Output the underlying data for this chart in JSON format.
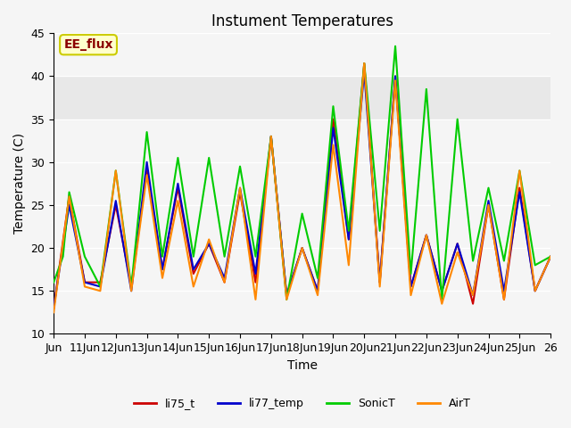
{
  "title": "Instument Temperatures",
  "xlabel": "Time",
  "ylabel": "Temperature (C)",
  "ylim": [
    10,
    45
  ],
  "shade_ymin": 35,
  "shade_ymax": 40,
  "shade_color": "#e8e8e8",
  "bg_color": "#f5f5f5",
  "grid_color": "#ffffff",
  "annotation_text": "EE_flux",
  "annotation_color": "#8b0000",
  "annotation_bg": "#ffffcc",
  "annotation_border": "#cccc00",
  "x_tick_positions": [
    0,
    1,
    2,
    3,
    4,
    5,
    6,
    7,
    8,
    9,
    10,
    11,
    12,
    13,
    14,
    15,
    16
  ],
  "x_tick_labels": [
    "Jun",
    "11Jun",
    "12Jun",
    "13Jun",
    "14Jun",
    "15Jun",
    "16Jun",
    "17Jun",
    "18Jun",
    "19Jun",
    "20Jun",
    "21Jun",
    "22Jun",
    "23Jun",
    "24Jun",
    "25Jun",
    "26"
  ],
  "legend_labels": [
    "li75_t",
    "li77_temp",
    "SonicT",
    "AirT"
  ],
  "legend_colors": [
    "#cc0000",
    "#0000cc",
    "#00cc00",
    "#ff8800"
  ],
  "line_width": 1.5,
  "series": {
    "li75_t": {
      "color": "#cc0000",
      "x": [
        0.0,
        0.5,
        1.0,
        1.5,
        2.0,
        2.5,
        3.0,
        3.5,
        4.0,
        4.5,
        5.0,
        5.5,
        6.0,
        6.5,
        7.0,
        7.5,
        8.0,
        8.5,
        9.0,
        9.5,
        10.0,
        10.5,
        11.0,
        11.5,
        12.0,
        12.5,
        13.0,
        13.5,
        14.0,
        14.5,
        15.0,
        15.5,
        16.0
      ],
      "y": [
        13.0,
        26.0,
        16.0,
        16.0,
        25.0,
        15.5,
        29.0,
        17.5,
        27.0,
        17.0,
        20.5,
        16.0,
        26.5,
        16.0,
        33.0,
        14.5,
        20.0,
        15.0,
        35.0,
        21.0,
        41.5,
        16.0,
        40.0,
        15.5,
        21.5,
        15.0,
        20.5,
        13.5,
        25.0,
        14.0,
        27.0,
        15.0,
        19.0
      ]
    },
    "li77_temp": {
      "color": "#0000cc",
      "x": [
        0.0,
        0.5,
        1.0,
        1.5,
        2.0,
        2.5,
        3.0,
        3.5,
        4.0,
        4.5,
        5.0,
        5.5,
        6.0,
        6.5,
        7.0,
        7.5,
        8.0,
        8.5,
        9.0,
        9.5,
        10.0,
        10.5,
        11.0,
        11.5,
        12.0,
        12.5,
        13.0,
        13.5,
        14.0,
        14.5,
        15.0,
        15.5,
        16.0
      ],
      "y": [
        13.0,
        25.0,
        16.0,
        15.5,
        25.5,
        15.0,
        30.0,
        17.5,
        27.5,
        17.5,
        20.5,
        16.5,
        27.0,
        17.0,
        33.0,
        14.5,
        20.0,
        15.0,
        34.0,
        21.0,
        40.5,
        16.0,
        40.0,
        15.5,
        21.5,
        15.0,
        20.5,
        14.5,
        25.5,
        15.0,
        26.5,
        15.0,
        19.0
      ]
    },
    "SonicT": {
      "color": "#00cc00",
      "x": [
        0.0,
        0.3,
        0.5,
        1.0,
        1.5,
        2.0,
        2.5,
        3.0,
        3.5,
        4.0,
        4.5,
        5.0,
        5.5,
        6.0,
        6.5,
        7.0,
        7.5,
        8.0,
        8.5,
        9.0,
        9.5,
        10.0,
        10.5,
        11.0,
        11.5,
        12.0,
        12.5,
        13.0,
        13.5,
        14.0,
        14.5,
        15.0,
        15.5,
        16.0
      ],
      "y": [
        16.0,
        19.0,
        26.5,
        19.0,
        15.5,
        29.0,
        15.5,
        33.5,
        19.0,
        30.5,
        19.0,
        30.5,
        19.0,
        29.5,
        19.0,
        33.0,
        14.0,
        24.0,
        16.5,
        36.5,
        22.0,
        41.5,
        22.0,
        43.5,
        17.0,
        38.5,
        14.0,
        35.0,
        18.5,
        27.0,
        18.5,
        29.0,
        18.0,
        19.0
      ]
    },
    "AirT": {
      "color": "#ff8800",
      "x": [
        0.0,
        0.5,
        1.0,
        1.5,
        2.0,
        2.5,
        3.0,
        3.5,
        4.0,
        4.5,
        5.0,
        5.5,
        6.0,
        6.5,
        7.0,
        7.5,
        8.0,
        8.5,
        9.0,
        9.5,
        10.0,
        10.5,
        11.0,
        11.5,
        12.0,
        12.5,
        13.0,
        13.5,
        14.0,
        14.5,
        15.0,
        15.5,
        16.0
      ],
      "y": [
        12.5,
        26.0,
        15.5,
        15.0,
        29.0,
        15.0,
        28.5,
        16.5,
        25.5,
        15.5,
        21.0,
        16.0,
        27.0,
        14.0,
        33.0,
        14.0,
        20.0,
        14.5,
        32.0,
        18.0,
        41.5,
        15.5,
        39.5,
        14.5,
        21.5,
        13.5,
        19.5,
        14.5,
        25.0,
        14.0,
        29.0,
        15.0,
        19.0
      ]
    }
  }
}
